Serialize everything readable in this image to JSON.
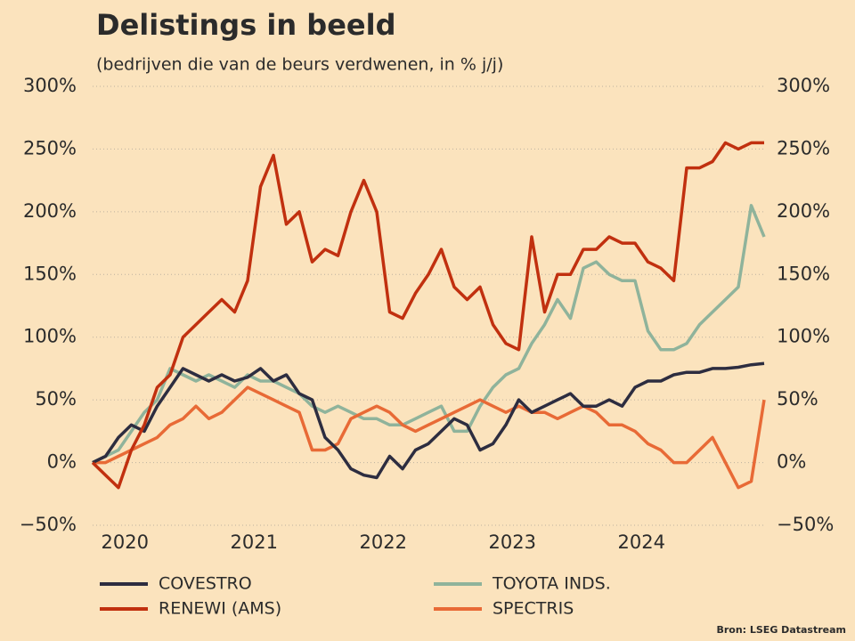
{
  "chart_data": {
    "type": "line",
    "title": "Delistings in beeld",
    "subtitle": "(bedrijven die van de beurs verdwenen, in % j/j)",
    "source": "Bron: LSEG Datastream",
    "x": [
      2019.75,
      2019.85,
      2019.95,
      2020.05,
      2020.15,
      2020.25,
      2020.35,
      2020.45,
      2020.55,
      2020.65,
      2020.75,
      2020.85,
      2020.95,
      2021.05,
      2021.15,
      2021.25,
      2021.35,
      2021.45,
      2021.55,
      2021.65,
      2021.75,
      2021.85,
      2021.95,
      2022.05,
      2022.15,
      2022.25,
      2022.35,
      2022.45,
      2022.55,
      2022.65,
      2022.75,
      2022.85,
      2022.95,
      2023.05,
      2023.15,
      2023.25,
      2023.35,
      2023.45,
      2023.55,
      2023.65,
      2023.75,
      2023.85,
      2023.95,
      2024.05,
      2024.15,
      2024.25,
      2024.35,
      2024.45,
      2024.55,
      2024.65,
      2024.75,
      2024.85,
      2024.95
    ],
    "xlim": [
      2019.75,
      2024.95
    ],
    "xticks": [
      2020,
      2021,
      2022,
      2023,
      2024
    ],
    "ylim": [
      -50,
      300
    ],
    "yticks": [
      {
        "value": -50,
        "label": "−50%"
      },
      {
        "value": 0,
        "label": "0%"
      },
      {
        "value": 50,
        "label": "50%"
      },
      {
        "value": 100,
        "label": "100%"
      },
      {
        "value": 150,
        "label": "150%"
      },
      {
        "value": 200,
        "label": "200%"
      },
      {
        "value": 250,
        "label": "250%"
      },
      {
        "value": 300,
        "label": "300%"
      }
    ],
    "y2lim": [
      -50,
      300
    ],
    "y2ticks": [
      {
        "value": -50,
        "label": "−50%"
      },
      {
        "value": 0,
        "label": "0%"
      },
      {
        "value": 50,
        "label": "50%"
      },
      {
        "value": 100,
        "label": "100%"
      },
      {
        "value": 150,
        "label": "150%"
      },
      {
        "value": 200,
        "label": "200%"
      },
      {
        "value": 250,
        "label": "250%"
      },
      {
        "value": 300,
        "label": "300%"
      }
    ],
    "grid": true,
    "series": [
      {
        "name": "COVESTRO",
        "color": "#2d2d40",
        "values": [
          0,
          5,
          20,
          30,
          25,
          45,
          60,
          75,
          70,
          65,
          70,
          65,
          68,
          75,
          65,
          70,
          55,
          50,
          20,
          10,
          -5,
          -10,
          -12,
          5,
          -5,
          10,
          15,
          25,
          35,
          30,
          10,
          15,
          30,
          50,
          40,
          45,
          50,
          55,
          45,
          45,
          50,
          45,
          60,
          65,
          65,
          70,
          72,
          72,
          75,
          75,
          76,
          78,
          79
        ]
      },
      {
        "name": "TOYOTA INDS.",
        "color": "#8fb39b",
        "values": [
          0,
          5,
          10,
          25,
          40,
          50,
          75,
          70,
          65,
          70,
          65,
          60,
          70,
          65,
          65,
          60,
          55,
          45,
          40,
          45,
          40,
          35,
          35,
          30,
          30,
          35,
          40,
          45,
          25,
          25,
          45,
          60,
          70,
          75,
          95,
          110,
          130,
          115,
          155,
          160,
          150,
          145,
          145,
          105,
          90,
          90,
          95,
          110,
          120,
          130,
          140,
          205,
          180
        ]
      },
      {
        "name": "RENEWI (AMS)",
        "color": "#c1300f",
        "values": [
          0,
          -10,
          -20,
          10,
          30,
          60,
          70,
          100,
          110,
          120,
          130,
          120,
          145,
          220,
          245,
          190,
          200,
          160,
          170,
          165,
          200,
          225,
          200,
          120,
          115,
          135,
          150,
          170,
          140,
          130,
          140,
          110,
          95,
          90,
          180,
          120,
          150,
          150,
          170,
          170,
          180,
          175,
          175,
          160,
          155,
          145,
          235,
          235,
          240,
          255,
          250,
          255,
          255
        ]
      },
      {
        "name": "SPECTRIS",
        "color": "#e86a36",
        "values": [
          0,
          0,
          5,
          10,
          15,
          20,
          30,
          35,
          45,
          35,
          40,
          50,
          60,
          55,
          50,
          45,
          40,
          10,
          10,
          15,
          35,
          40,
          45,
          40,
          30,
          25,
          30,
          35,
          40,
          45,
          50,
          45,
          40,
          45,
          40,
          40,
          35,
          40,
          45,
          40,
          30,
          30,
          25,
          15,
          10,
          0,
          0,
          10,
          20,
          0,
          -20,
          -15,
          50
        ]
      }
    ]
  }
}
